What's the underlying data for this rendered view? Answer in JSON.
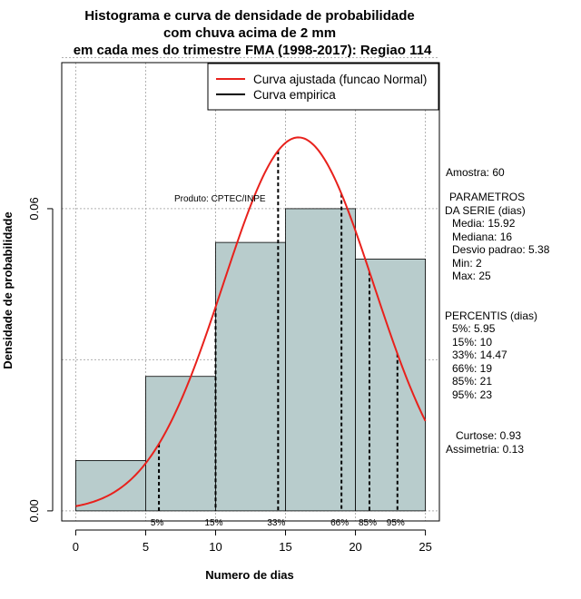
{
  "chart_data": {
    "type": "histogram",
    "title": [
      "Histograma e curva de densidade de probabilidade",
      "com chuva acima de 2 mm",
      "em cada mes do trimestre FMA (1998-2017): Regiao 114"
    ],
    "xlabel": "Numero de dias",
    "ylabel": "Densidade de probabilidade",
    "xlim": [
      -1,
      26
    ],
    "ylim": [
      -0.002,
      0.089
    ],
    "x_ticks": [
      0,
      5,
      10,
      15,
      20,
      25
    ],
    "x_tick_labels": [
      "0",
      "5",
      "10",
      "15",
      "20",
      "25"
    ],
    "y_ticks": [
      0.0,
      0.06
    ],
    "y_tick_labels": [
      "0.00",
      "0.06"
    ],
    "grid_y": [
      0.0,
      0.03,
      0.06,
      0.09
    ],
    "grid_x": [
      0,
      5,
      10,
      15,
      20,
      25
    ],
    "bars": [
      {
        "x0": 0,
        "x1": 5,
        "density": 0.01
      },
      {
        "x0": 5,
        "x1": 10,
        "density": 0.0267
      },
      {
        "x0": 10,
        "x1": 15,
        "density": 0.0533
      },
      {
        "x0": 15,
        "x1": 20,
        "density": 0.06
      },
      {
        "x0": 20,
        "x1": 25,
        "density": 0.05
      }
    ],
    "bar_color": "#b8cccc",
    "normal_curve": {
      "name": "Curva ajustada (funcao Normal)",
      "mean": 15.92,
      "sd": 5.38,
      "color": "#e8211c",
      "x_range": [
        0,
        25
      ]
    },
    "empirical_curve": {
      "name": "Curva empirica",
      "color": "#000000"
    },
    "percentile_lines": [
      {
        "label": "5%",
        "x": 5.95
      },
      {
        "label": "15%",
        "x": 10
      },
      {
        "label": "33%",
        "x": 14.47
      },
      {
        "label": "66%",
        "x": 19
      },
      {
        "label": "85%",
        "x": 21
      },
      {
        "label": "95%",
        "x": 23
      }
    ],
    "legend_position": "top-right",
    "annotation": "Produto: CPTEC/INPE"
  },
  "side_panel": {
    "sample": "Amostra: 60",
    "params_title_1": "PARAMETROS",
    "params_title_2": "DA SERIE (dias)",
    "params": [
      "Media: 15.92",
      "Mediana: 16",
      "Desvio padrao: 5.38",
      "Min: 2",
      "Max: 25"
    ],
    "percentis_title": "PERCENTIS (dias)",
    "percentis": [
      "5%: 5.95",
      "15%: 10",
      "33%: 14.47",
      "66%: 19",
      "85%: 21",
      "95%: 23"
    ],
    "curtose": "Curtose: 0.93",
    "assimetria": "Assimetria: 0.13"
  }
}
